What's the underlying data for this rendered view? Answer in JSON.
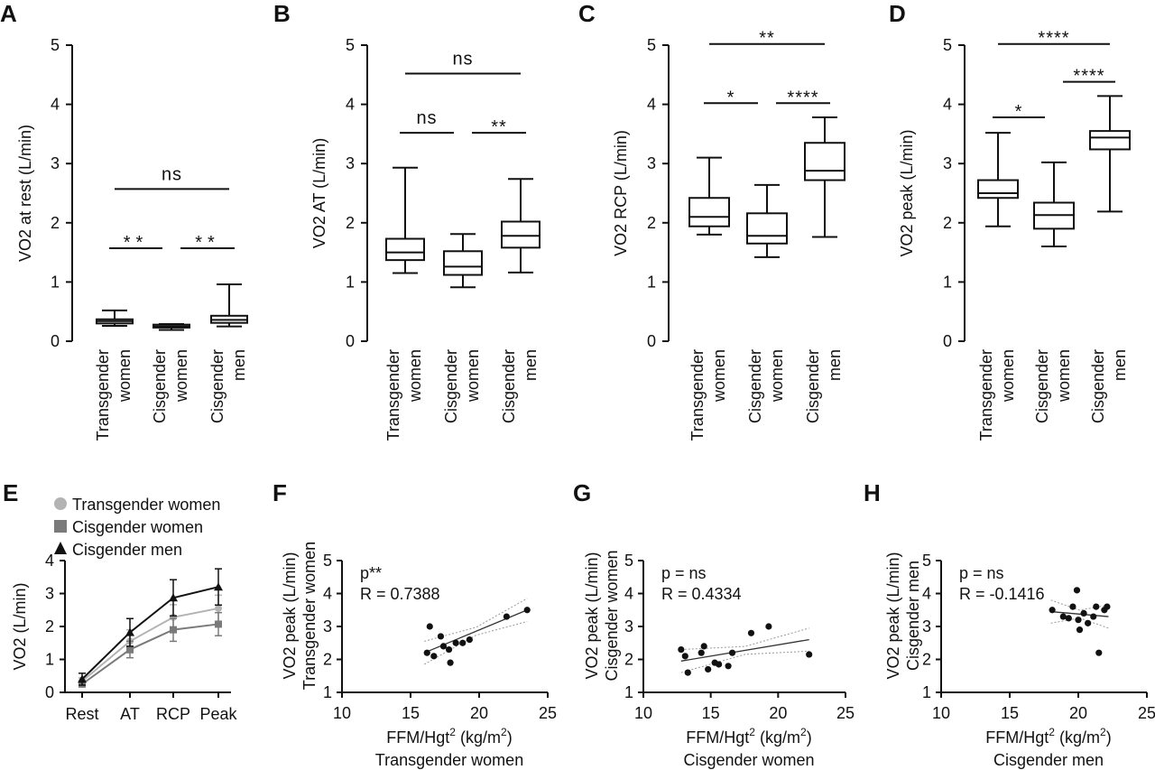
{
  "chart_data": [
    {
      "panel": "A",
      "type": "box",
      "ylabel": "VO2 at rest (L/min)",
      "ylim": [
        0,
        5
      ],
      "yticks": [
        0,
        1,
        2,
        3,
        4,
        5
      ],
      "categories": [
        [
          "Transgender",
          "women"
        ],
        [
          "Cisgender",
          "women"
        ],
        [
          "Cisgender",
          "men"
        ]
      ],
      "boxes": [
        {
          "min": 0.26,
          "q1": 0.3,
          "median": 0.34,
          "q3": 0.37,
          "max": 0.52
        },
        {
          "min": 0.19,
          "q1": 0.23,
          "median": 0.25,
          "q3": 0.28,
          "max": 0.29
        },
        {
          "min": 0.25,
          "q1": 0.31,
          "median": 0.36,
          "q3": 0.43,
          "max": 0.96
        }
      ],
      "comparisons": [
        {
          "from": 0,
          "to": 1,
          "label": "**",
          "y": 1.57
        },
        {
          "from": 1,
          "to": 2,
          "label": "**",
          "y": 1.57
        },
        {
          "from": 0,
          "to": 2,
          "label": "ns",
          "y": 2.57
        }
      ]
    },
    {
      "panel": "B",
      "type": "box",
      "ylabel": "VO2 AT (L/min)",
      "ylim": [
        0,
        5
      ],
      "yticks": [
        0,
        1,
        2,
        3,
        4,
        5
      ],
      "categories": [
        [
          "Transgender",
          "women"
        ],
        [
          "Cisgender",
          "women"
        ],
        [
          "Cisgender",
          "men"
        ]
      ],
      "boxes": [
        {
          "min": 1.15,
          "q1": 1.37,
          "median": 1.5,
          "q3": 1.73,
          "max": 2.93
        },
        {
          "min": 0.91,
          "q1": 1.12,
          "median": 1.26,
          "q3": 1.52,
          "max": 1.81
        },
        {
          "min": 1.16,
          "q1": 1.58,
          "median": 1.78,
          "q3": 2.02,
          "max": 2.74
        }
      ],
      "comparisons": [
        {
          "from": 0,
          "to": 1,
          "label": "ns",
          "y": 3.52
        },
        {
          "from": 1,
          "to": 2,
          "label": "**",
          "y": 3.52
        },
        {
          "from": 0,
          "to": 2,
          "label": "ns",
          "y": 4.52
        }
      ]
    },
    {
      "panel": "C",
      "type": "box",
      "ylabel": "VO2 RCP (L/min)",
      "ylim": [
        0,
        5
      ],
      "yticks": [
        0,
        1,
        2,
        3,
        4,
        5
      ],
      "categories": [
        [
          "Transgender",
          "women"
        ],
        [
          "Cisgender",
          "women"
        ],
        [
          "Cisgender",
          "men"
        ]
      ],
      "boxes": [
        {
          "min": 1.8,
          "q1": 1.94,
          "median": 2.1,
          "q3": 2.42,
          "max": 3.1
        },
        {
          "min": 1.42,
          "q1": 1.65,
          "median": 1.78,
          "q3": 2.16,
          "max": 2.64
        },
        {
          "min": 1.76,
          "q1": 2.72,
          "median": 2.88,
          "q3": 3.35,
          "max": 3.78
        }
      ],
      "comparisons": [
        {
          "from": 0,
          "to": 1,
          "label": "*",
          "y": 4.02
        },
        {
          "from": 1,
          "to": 2,
          "label": "****",
          "y": 4.02
        },
        {
          "from": 0,
          "to": 2,
          "label": "**",
          "y": 5.02
        }
      ]
    },
    {
      "panel": "D",
      "type": "box",
      "ylabel": "VO2 peak (L/min)",
      "ylim": [
        0,
        5
      ],
      "yticks": [
        0,
        1,
        2,
        3,
        4,
        5
      ],
      "categories": [
        [
          "Transgender",
          "women"
        ],
        [
          "Cisgender",
          "women"
        ],
        [
          "Cisgender",
          "men"
        ]
      ],
      "boxes": [
        {
          "min": 1.94,
          "q1": 2.42,
          "median": 2.5,
          "q3": 2.72,
          "max": 3.52
        },
        {
          "min": 1.6,
          "q1": 1.9,
          "median": 2.13,
          "q3": 2.34,
          "max": 3.02
        },
        {
          "min": 2.19,
          "q1": 3.24,
          "median": 3.44,
          "q3": 3.55,
          "max": 4.14
        }
      ],
      "comparisons": [
        {
          "from": 0,
          "to": 1,
          "label": "*",
          "y": 3.78
        },
        {
          "from": 1,
          "to": 2,
          "label": "****",
          "y": 4.38
        },
        {
          "from": 0,
          "to": 2,
          "label": "****",
          "y": 5.02
        }
      ]
    },
    {
      "panel": "E",
      "type": "line",
      "ylabel": "VO2 (L/min)",
      "ylim": [
        0,
        4
      ],
      "yticks": [
        0,
        1,
        2,
        3,
        4
      ],
      "categories": [
        "Rest",
        "AT",
        "RCP",
        "Peak"
      ],
      "legend_position": "top",
      "series": [
        {
          "name": "Transgender women",
          "marker": "circle",
          "color": "#b3b3b3",
          "values": [
            0.34,
            1.55,
            2.28,
            2.55
          ],
          "errors": [
            0.1,
            0.35,
            0.38,
            0.4
          ]
        },
        {
          "name": "Cisgender women",
          "marker": "square",
          "color": "#7a7a7a",
          "values": [
            0.25,
            1.3,
            1.9,
            2.07
          ],
          "errors": [
            0.05,
            0.25,
            0.35,
            0.35
          ]
        },
        {
          "name": "Cisgender men",
          "marker": "triangle",
          "color": "#111111",
          "values": [
            0.4,
            1.82,
            2.87,
            3.2
          ],
          "errors": [
            0.18,
            0.42,
            0.55,
            0.55
          ]
        }
      ]
    },
    {
      "panel": "F",
      "type": "scatter",
      "ylabel": [
        "VO2 peak (L/min)",
        "Transgender women"
      ],
      "xlabel_base": "FFM/Hgt",
      "xlabel_sup": "2",
      "xlabel_unit": "(kg/m",
      "xlabel_unit_sup": "2",
      "xlabel_close": ")",
      "xlabel_group": "Transgender women",
      "xlim": [
        10,
        25
      ],
      "xticks": [
        10,
        15,
        20,
        25
      ],
      "ylim": [
        1,
        5
      ],
      "yticks": [
        1,
        2,
        3,
        4,
        5
      ],
      "stat_p": "p**",
      "stat_r": "R = 0.7388",
      "fit": {
        "x0": 16,
        "y0": 2.2,
        "x1": 23.5,
        "y1": 3.5
      },
      "points": [
        [
          16.2,
          2.2
        ],
        [
          16.4,
          3.0
        ],
        [
          16.7,
          2.1
        ],
        [
          17.2,
          2.7
        ],
        [
          17.4,
          2.4
        ],
        [
          17.8,
          2.3
        ],
        [
          17.9,
          1.9
        ],
        [
          18.3,
          2.5
        ],
        [
          18.8,
          2.5
        ],
        [
          19.3,
          2.6
        ],
        [
          22.0,
          3.3
        ],
        [
          23.5,
          3.5
        ]
      ]
    },
    {
      "panel": "G",
      "type": "scatter",
      "ylabel": [
        "VO2 peak (L/min)",
        "Cisgender women"
      ],
      "xlabel_base": "FFM/Hgt",
      "xlabel_sup": "2",
      "xlabel_unit": "(kg/m",
      "xlabel_unit_sup": "2",
      "xlabel_close": ")",
      "xlabel_group": "Cisgender women",
      "xlim": [
        10,
        25
      ],
      "xticks": [
        10,
        15,
        20,
        25
      ],
      "ylim": [
        1,
        5
      ],
      "yticks": [
        1,
        2,
        3,
        4,
        5
      ],
      "stat_p": "p = ns",
      "stat_r": "R = 0.4334",
      "fit": {
        "x0": 12.8,
        "y0": 1.95,
        "x1": 22.3,
        "y1": 2.6
      },
      "points": [
        [
          12.8,
          2.3
        ],
        [
          13.1,
          2.1
        ],
        [
          13.3,
          1.6
        ],
        [
          14.3,
          2.2
        ],
        [
          14.5,
          2.4
        ],
        [
          14.8,
          1.7
        ],
        [
          15.3,
          1.9
        ],
        [
          15.6,
          1.85
        ],
        [
          16.3,
          1.8
        ],
        [
          16.6,
          2.2
        ],
        [
          18.0,
          2.8
        ],
        [
          19.3,
          3.0
        ],
        [
          22.3,
          2.15
        ]
      ]
    },
    {
      "panel": "H",
      "type": "scatter",
      "ylabel": [
        "VO2 peak (L/min)",
        "Cisgender men"
      ],
      "xlabel_base": "FFM/Hgt",
      "xlabel_sup": "2",
      "xlabel_unit": "(kg/m",
      "xlabel_unit_sup": "2",
      "xlabel_close": ")",
      "xlabel_group": "Cisgender men",
      "xlim": [
        10,
        25
      ],
      "xticks": [
        10,
        15,
        20,
        25
      ],
      "ylim": [
        1,
        5
      ],
      "yticks": [
        1,
        2,
        3,
        4,
        5
      ],
      "stat_p": "p = ns",
      "stat_r": "R = -0.1416",
      "fit": {
        "x0": 18,
        "y0": 3.45,
        "x1": 22.2,
        "y1": 3.3
      },
      "points": [
        [
          18.1,
          3.5
        ],
        [
          18.9,
          3.3
        ],
        [
          19.3,
          3.25
        ],
        [
          19.6,
          3.6
        ],
        [
          19.9,
          4.1
        ],
        [
          20.0,
          3.2
        ],
        [
          20.1,
          2.9
        ],
        [
          20.4,
          3.4
        ],
        [
          20.7,
          3.1
        ],
        [
          21.1,
          3.3
        ],
        [
          21.3,
          3.6
        ],
        [
          21.5,
          2.2
        ],
        [
          21.9,
          3.5
        ],
        [
          22.1,
          3.6
        ]
      ]
    }
  ]
}
